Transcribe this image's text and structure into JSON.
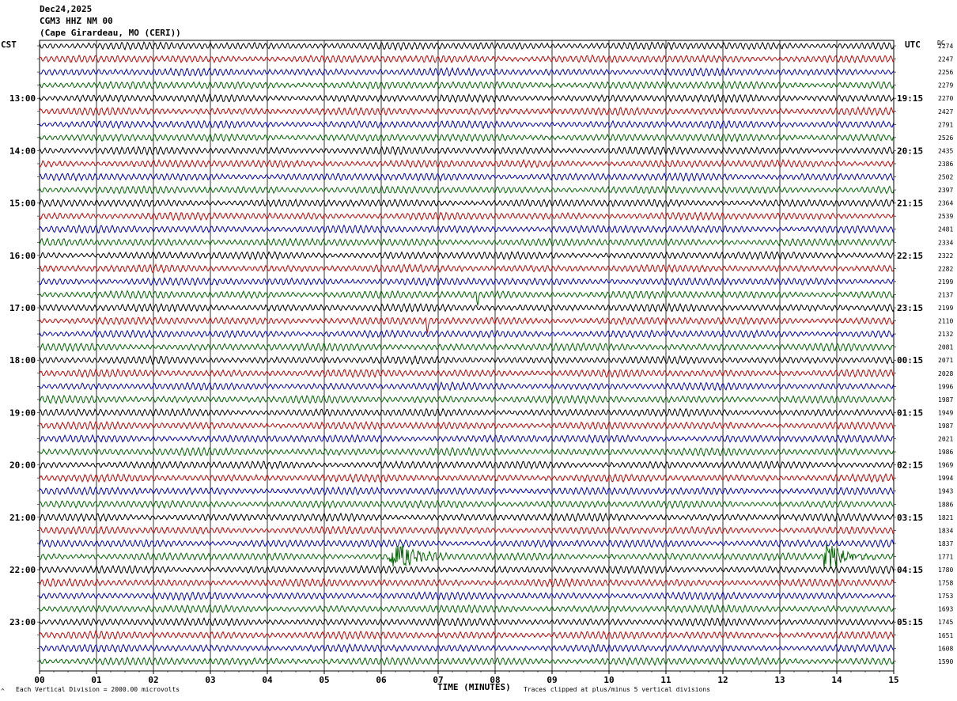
{
  "header": {
    "date": "Dec24,2025",
    "station": "CGM3 HHZ NM 00",
    "location": "(Cape Girardeau, MO (CERI))"
  },
  "left_tz": "CST",
  "right_tz": "UTC",
  "dc_label": "DC",
  "footer": {
    "division": "Each Vertical Division = 2000.00 microvolts",
    "xlabel": "TIME (MINUTES)",
    "clip": "Traces clipped at plus/minus 5 vertical divisions",
    "corner_mark": "^"
  },
  "colors": {
    "trace_cycle": [
      "#000000",
      "#cc0000",
      "#0000cc",
      "#006600"
    ],
    "grid": "#000000"
  },
  "chart_data": {
    "type": "line",
    "title": "",
    "xlabel": "TIME (MINUTES)",
    "ylabel": "",
    "x_ticks": [
      "00",
      "01",
      "02",
      "03",
      "04",
      "05",
      "06",
      "07",
      "08",
      "09",
      "10",
      "11",
      "12",
      "13",
      "14",
      "15"
    ],
    "xlim": [
      0,
      15
    ],
    "rows": 48,
    "left_hour_labels": [
      "13:00",
      "14:00",
      "15:00",
      "16:00",
      "17:00",
      "18:00",
      "19:00",
      "20:00",
      "21:00",
      "22:00",
      "23:00"
    ],
    "right_hour_labels": [
      "19:15",
      "20:15",
      "21:15",
      "22:15",
      "23:15",
      "00:15",
      "01:15",
      "02:15",
      "03:15",
      "04:15",
      "05:15"
    ],
    "dc_offsets": [
      2274,
      2247,
      2256,
      2279,
      2270,
      2427,
      2791,
      2526,
      2435,
      2386,
      2502,
      2397,
      2364,
      2539,
      2481,
      2334,
      2322,
      2282,
      2199,
      2137,
      2199,
      2110,
      2132,
      2081,
      2071,
      2028,
      1996,
      1987,
      1949,
      1987,
      2021,
      1986,
      1969,
      1994,
      1943,
      1886,
      1821,
      1834,
      1837,
      1771,
      1780,
      1758,
      1753,
      1693,
      1745,
      1651,
      1608,
      1590
    ],
    "events": [
      {
        "row": 39,
        "minute": 6.2,
        "note": "burst"
      },
      {
        "row": 39,
        "minute": 13.8,
        "note": "burst"
      },
      {
        "row": 19,
        "minute": 7.7,
        "note": "spike"
      },
      {
        "row": 21,
        "minute": 6.8,
        "note": "spike"
      }
    ]
  }
}
